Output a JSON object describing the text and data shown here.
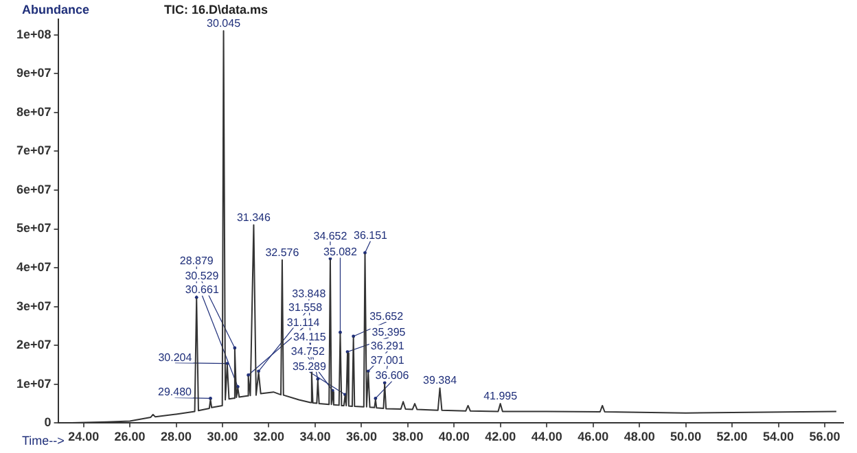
{
  "chart_data": {
    "type": "line",
    "title": "TIC: 16.D\\data.ms",
    "xlabel": "Time-->",
    "ylabel": "Abundance",
    "xlim": [
      22.9,
      56.8
    ],
    "xticks": [
      {
        "value": 24,
        "label": "24.00"
      },
      {
        "value": 26,
        "label": "26.00"
      },
      {
        "value": 28,
        "label": "28.00"
      },
      {
        "value": 30,
        "label": "30.00"
      },
      {
        "value": 32,
        "label": "32.00"
      },
      {
        "value": 34,
        "label": "34.00"
      },
      {
        "value": 36,
        "label": "36.00"
      },
      {
        "value": 38,
        "label": "38.00"
      },
      {
        "value": 40,
        "label": "40.00"
      },
      {
        "value": 42,
        "label": "42.00"
      },
      {
        "value": 44,
        "label": "44.00"
      },
      {
        "value": 46,
        "label": "46.00"
      },
      {
        "value": 48,
        "label": "48.00"
      },
      {
        "value": 50,
        "label": "50.00"
      },
      {
        "value": 52,
        "label": "52.00"
      },
      {
        "value": 54,
        "label": "54.00"
      },
      {
        "value": 56,
        "label": "56.00"
      }
    ],
    "ylim": [
      0,
      104000000
    ],
    "yticks": [
      0,
      {
        "value": 10000000,
        "label": "1e+07"
      },
      {
        "value": 20000000,
        "label": "2e+07"
      },
      {
        "value": 30000000,
        "label": "3e+07"
      },
      {
        "value": 40000000,
        "label": "4e+07"
      },
      {
        "value": 50000000,
        "label": "5e+07"
      },
      {
        "value": 60000000,
        "label": "6e+07"
      },
      {
        "value": 70000000,
        "label": "7e+07"
      },
      {
        "value": 80000000,
        "label": "8e+07"
      },
      {
        "value": 90000000,
        "label": "9e+07"
      },
      {
        "value": 100000000,
        "label": "1e+08"
      }
    ],
    "grid": false,
    "legend": false,
    "marker": "none",
    "line_style": "solid",
    "series": [
      {
        "color": "#333333",
        "x": [
          22.9,
          25.0,
          26.0,
          26.9,
          27.0,
          27.1,
          28.0,
          28.8,
          28.879,
          28.96,
          29.43,
          29.48,
          29.53,
          29.99,
          30.045,
          30.12,
          30.204,
          30.28,
          30.48,
          30.529,
          30.6,
          30.661,
          30.72,
          31.07,
          31.114,
          31.2,
          31.346,
          31.45,
          31.558,
          31.65,
          32.2,
          32.52,
          32.576,
          32.63,
          33.3,
          33.8,
          33.848,
          33.9,
          34.07,
          34.115,
          34.17,
          34.6,
          34.652,
          34.7,
          34.752,
          34.8,
          35.03,
          35.082,
          35.14,
          35.24,
          35.289,
          35.34,
          35.395,
          35.45,
          35.6,
          35.652,
          35.7,
          36.1,
          36.151,
          36.22,
          36.291,
          36.36,
          36.56,
          36.606,
          36.65,
          36.95,
          37.001,
          37.06,
          37.7,
          37.8,
          37.9,
          38.2,
          38.3,
          38.4,
          39.3,
          39.384,
          39.47,
          40.5,
          40.6,
          40.7,
          41.9,
          41.995,
          42.09,
          44.0,
          46.3,
          46.4,
          46.5,
          50.0,
          56.5
        ],
        "values": [
          0,
          300000,
          500000,
          1500000,
          2200000,
          1600000,
          2300000,
          3000000,
          32000000,
          3200000,
          3800000,
          6000000,
          4000000,
          4500000,
          101000000,
          6000000,
          15000000,
          6200000,
          6400000,
          19000000,
          6600000,
          9000000,
          6700000,
          7000000,
          12000000,
          7100000,
          51000000,
          7200000,
          13000000,
          7600000,
          8000000,
          7300000,
          42000000,
          7200000,
          6000000,
          5300000,
          13000000,
          5200000,
          5100000,
          11000000,
          5000000,
          4800000,
          42000000,
          4800000,
          8000000,
          4700000,
          4600000,
          23000000,
          4500000,
          4500000,
          7000000,
          4500000,
          18000000,
          4400000,
          4300000,
          22000000,
          4300000,
          4200000,
          43500000,
          4200000,
          13000000,
          4100000,
          4000000,
          6000000,
          3900000,
          3800000,
          10000000,
          3700000,
          3600000,
          5500000,
          3600000,
          3500000,
          5000000,
          3500000,
          3300000,
          9000000,
          3300000,
          3100000,
          4500000,
          3100000,
          3000000,
          5000000,
          3000000,
          3000000,
          2900000,
          4500000,
          2900000,
          2600000,
          3000000
        ]
      }
    ],
    "annotations": [
      {
        "text": "28.879",
        "x": 28.879,
        "y": 32000000
      },
      {
        "text": "29.480",
        "x": 29.48,
        "y": 6000000
      },
      {
        "text": "30.045",
        "x": 30.045,
        "y": 101000000
      },
      {
        "text": "30.204",
        "x": 30.204,
        "y": 15000000
      },
      {
        "text": "30.529",
        "x": 30.529,
        "y": 19000000
      },
      {
        "text": "30.661",
        "x": 30.661,
        "y": 9000000
      },
      {
        "text": "31.114",
        "x": 31.114,
        "y": 12000000
      },
      {
        "text": "31.346",
        "x": 31.346,
        "y": 51000000
      },
      {
        "text": "31.558",
        "x": 31.558,
        "y": 13000000
      },
      {
        "text": "32.576",
        "x": 32.576,
        "y": 42000000
      },
      {
        "text": "33.848",
        "x": 33.848,
        "y": 13000000
      },
      {
        "text": "34.115",
        "x": 34.115,
        "y": 11000000
      },
      {
        "text": "34.652",
        "x": 34.652,
        "y": 42000000
      },
      {
        "text": "34.752",
        "x": 34.752,
        "y": 8000000
      },
      {
        "text": "35.082",
        "x": 35.082,
        "y": 23000000
      },
      {
        "text": "35.289",
        "x": 35.289,
        "y": 7000000
      },
      {
        "text": "35.395",
        "x": 35.395,
        "y": 18000000
      },
      {
        "text": "35.652",
        "x": 35.652,
        "y": 22000000
      },
      {
        "text": "36.151",
        "x": 36.151,
        "y": 43500000
      },
      {
        "text": "36.291",
        "x": 36.291,
        "y": 13000000
      },
      {
        "text": "36.606",
        "x": 36.606,
        "y": 6000000
      },
      {
        "text": "37.001",
        "x": 37.001,
        "y": 10000000
      },
      {
        "text": "39.384",
        "x": 39.384,
        "y": 9000000
      },
      {
        "text": "41.995",
        "x": 41.995,
        "y": 5000000
      }
    ]
  }
}
